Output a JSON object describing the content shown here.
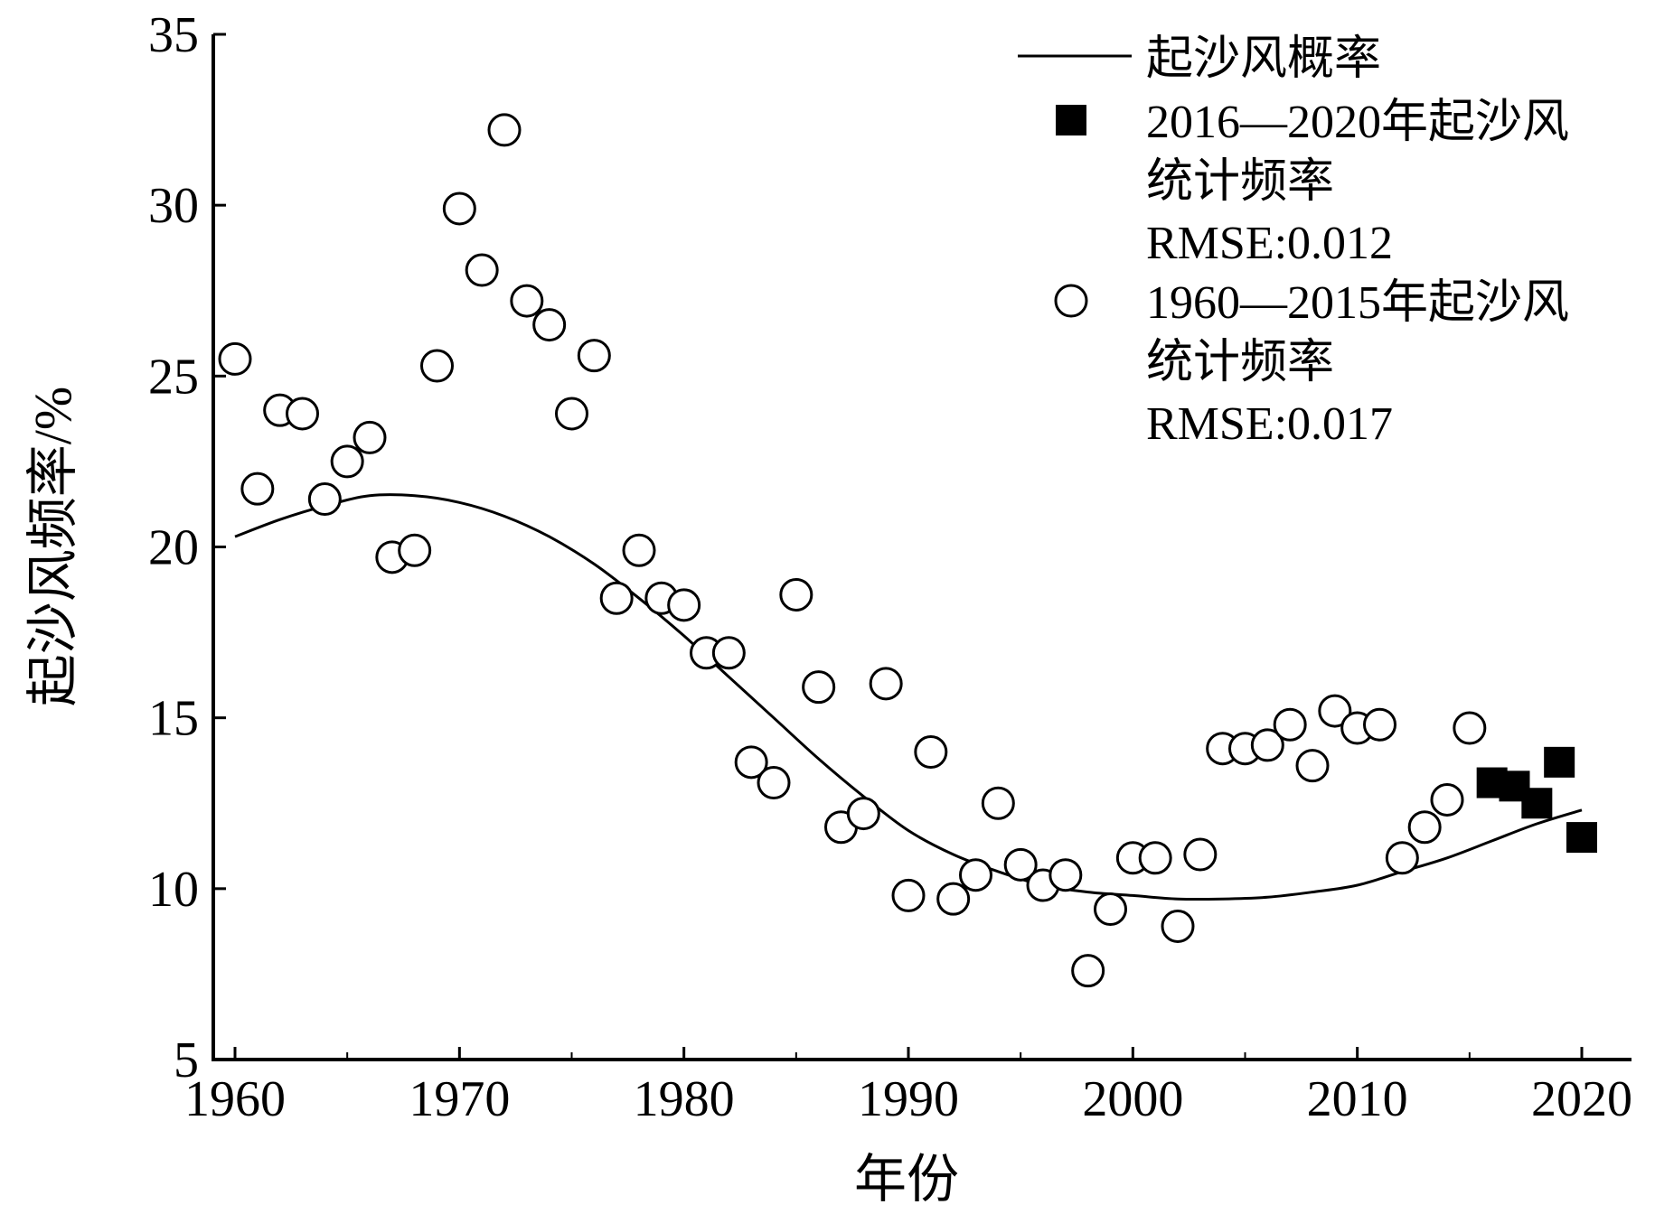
{
  "chart_data": {
    "type": "scatter",
    "xlabel": "年份",
    "ylabel": "起沙风频率/%",
    "xlim": [
      1959.5,
      2021.5
    ],
    "ylim": [
      5,
      35
    ],
    "x_ticks": [
      1960,
      1970,
      1980,
      1990,
      2000,
      2010,
      2020
    ],
    "y_ticks": [
      5,
      10,
      15,
      20,
      25,
      30,
      35
    ],
    "grid": false,
    "legend_position": "top-right",
    "legend": {
      "curve_label": "起沙风概率",
      "recent_label_line1": "2016—2020年起沙风",
      "recent_label_line2": "统计频率",
      "recent_rmse_name": "RMSE",
      "recent_rmse_value": ":0.012",
      "hist_label_line1": "1960—2015年起沙风",
      "hist_label_line2": "统计频率",
      "hist_rmse_name": "RMSE",
      "hist_rmse_value": ":0.017"
    },
    "series": [
      {
        "kind": "line",
        "label_ref": "curve_label",
        "x": [
          1960,
          1962,
          1964,
          1966,
          1968,
          1970,
          1972,
          1974,
          1976,
          1978,
          1980,
          1982,
          1984,
          1986,
          1988,
          1990,
          1992,
          1994,
          1996,
          1998,
          2000,
          2002,
          2004,
          2006,
          2008,
          2010,
          2012,
          2014,
          2016,
          2018,
          2020
        ],
        "y": [
          20.3,
          20.8,
          21.2,
          21.5,
          21.5,
          21.3,
          20.9,
          20.3,
          19.5,
          18.5,
          17.4,
          16.2,
          15.0,
          13.8,
          12.7,
          11.7,
          11.0,
          10.5,
          10.1,
          9.9,
          9.8,
          9.7,
          9.7,
          9.75,
          9.9,
          10.1,
          10.5,
          10.9,
          11.4,
          11.9,
          12.3
        ]
      },
      {
        "kind": "hollow-circle",
        "label_ref": "hist_label_line1",
        "x": [
          1960,
          1961,
          1962,
          1963,
          1964,
          1965,
          1966,
          1967,
          1968,
          1969,
          1970,
          1971,
          1972,
          1973,
          1974,
          1975,
          1976,
          1977,
          1978,
          1979,
          1980,
          1981,
          1982,
          1983,
          1984,
          1985,
          1986,
          1987,
          1988,
          1989,
          1990,
          1991,
          1992,
          1993,
          1994,
          1995,
          1996,
          1997,
          1998,
          1999,
          2000,
          2001,
          2002,
          2003,
          2004,
          2005,
          2006,
          2007,
          2008,
          2009,
          2010,
          2011,
          2012,
          2013,
          2014,
          2015
        ],
        "y": [
          25.5,
          21.7,
          24.0,
          23.9,
          21.4,
          22.5,
          23.2,
          19.7,
          19.9,
          25.3,
          29.9,
          28.1,
          32.2,
          27.2,
          26.5,
          23.9,
          25.6,
          18.5,
          19.9,
          18.5,
          18.3,
          16.9,
          16.9,
          13.7,
          13.1,
          18.6,
          15.9,
          11.8,
          12.2,
          16.0,
          9.8,
          14.0,
          9.7,
          10.4,
          12.5,
          10.7,
          10.1,
          10.4,
          7.6,
          9.4,
          10.9,
          10.9,
          8.9,
          11.0,
          14.1,
          14.1,
          14.2,
          14.8,
          13.6,
          15.2,
          14.7,
          14.8,
          10.9,
          11.8,
          12.6,
          14.7
        ]
      },
      {
        "kind": "filled-square",
        "label_ref": "recent_label_line1",
        "x": [
          2016,
          2017,
          2018,
          2019,
          2020
        ],
        "y": [
          13.1,
          13.0,
          12.5,
          13.7,
          11.5
        ]
      }
    ]
  }
}
